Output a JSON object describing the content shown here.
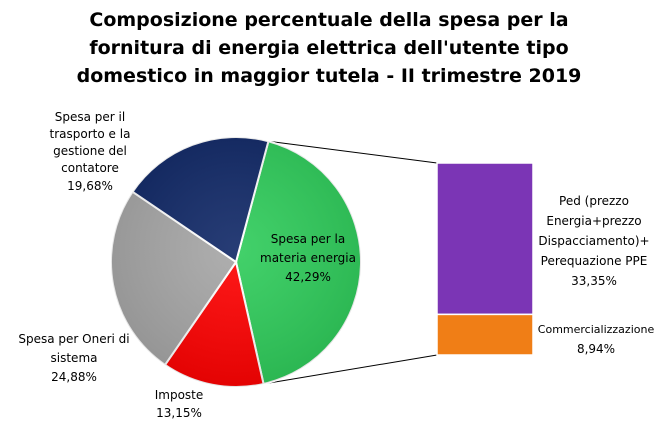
{
  "chart_data": {
    "type": "pie",
    "title_lines": [
      "Composizione percentuale della spesa per la",
      "fornitura di energia elettrica dell'utente tipo",
      "domestico in maggior tutela - II trimestre 2019"
    ],
    "pie": {
      "slices": [
        {
          "label_lines": [
            "Spesa per la",
            "materia energia"
          ],
          "value_text": "42,29%",
          "value": 42.29,
          "color": "#2ECC5A"
        },
        {
          "label_lines": [
            "Imposte"
          ],
          "value_text": "13,15%",
          "value": 13.15,
          "color": "#FF0000"
        },
        {
          "label_lines": [
            "Spesa per Oneri di",
            "sistema"
          ],
          "value_text": "24,88%",
          "value": 24.88,
          "color": "#A6A6A6"
        },
        {
          "label_lines": [
            "Spesa per il",
            "trasporto e la",
            "gestione del",
            "contatore"
          ],
          "value_text": "19,68%",
          "value": 19.68,
          "color": "#0F2766"
        }
      ]
    },
    "breakdown_bar": {
      "of_slice": "Spesa per la materia energia",
      "segments": [
        {
          "label_lines": [
            "Ped (prezzo",
            "Energia+prezzo",
            "Dispacciamento)+",
            "Perequazione PPE"
          ],
          "value_text": "33,35%",
          "value": 33.35,
          "color": "#7B35B5"
        },
        {
          "label_lines": [
            "Commercializzazione"
          ],
          "value_text": "8,94%",
          "value": 8.94,
          "color": "#F07E16"
        }
      ]
    }
  }
}
